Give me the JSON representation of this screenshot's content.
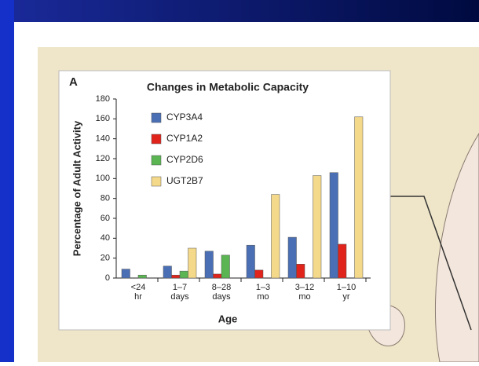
{
  "chart_data": {
    "type": "bar",
    "panel_label": "A",
    "title": "Changes in Metabolic Capacity",
    "x_label": "Age",
    "y_label": "Percentage of Adult Activity",
    "categories": [
      [
        "<24",
        "hr"
      ],
      [
        "1–7",
        "days"
      ],
      [
        "8–28",
        "days"
      ],
      [
        "1–3",
        "mo"
      ],
      [
        "3–12",
        "mo"
      ],
      [
        "1–10",
        "yr"
      ]
    ],
    "series": [
      {
        "name": "CYP3A4",
        "color": "#4a6fb5",
        "values": [
          9,
          12,
          27,
          33,
          41,
          106
        ]
      },
      {
        "name": "CYP1A2",
        "color": "#e0241b",
        "values": [
          null,
          3,
          4,
          8,
          14,
          34
        ]
      },
      {
        "name": "CYP2D6",
        "color": "#5ab552",
        "values": [
          3,
          7,
          23,
          null,
          null,
          null
        ]
      },
      {
        "name": "UGT2B7",
        "color": "#f5d98a",
        "values": [
          null,
          30,
          null,
          84,
          103,
          162
        ]
      }
    ],
    "ylim": [
      0,
      180
    ],
    "yticks": [
      0,
      20,
      40,
      60,
      80,
      100,
      120,
      140,
      160,
      180
    ]
  }
}
